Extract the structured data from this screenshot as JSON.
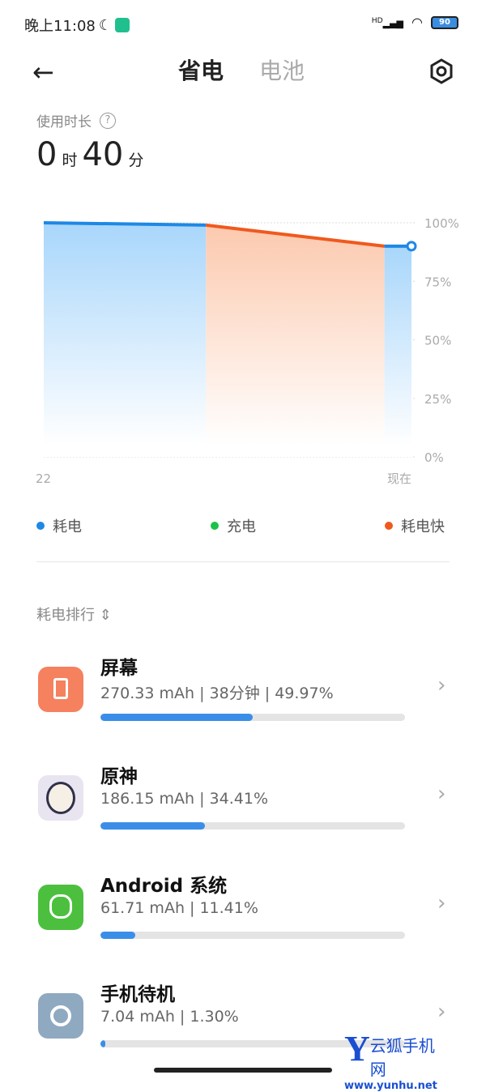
{
  "status_bar": {
    "time": "晚上11:08",
    "network": "HD",
    "battery": "90"
  },
  "header": {
    "tabs": [
      {
        "label": "省电",
        "active": true
      },
      {
        "label": "电池",
        "active": false
      }
    ]
  },
  "usage": {
    "label": "使用时长",
    "hours": "0",
    "hours_unit": "时",
    "minutes": "40",
    "minutes_unit": "分"
  },
  "chart_data": {
    "type": "area",
    "x_ticks": [
      "22",
      "现在"
    ],
    "x_range": [
      "22:00",
      "23:08"
    ],
    "y_ticks": [
      "100%",
      "75%",
      "50%",
      "25%",
      "0%"
    ],
    "ylim": [
      0,
      100
    ],
    "grid": true,
    "points": [
      {
        "time": "22:00",
        "value": 100
      },
      {
        "time": "22:30",
        "value": 99
      },
      {
        "time": "23:03",
        "value": 90
      },
      {
        "time": "23:08",
        "value": 90
      }
    ],
    "segments": [
      "耗电",
      "耗电快",
      "耗电"
    ],
    "legend": [
      {
        "label": "耗电",
        "color": "#1e88e5"
      },
      {
        "label": "充电",
        "color": "#1bc24a"
      },
      {
        "label": "耗电快",
        "color": "#f0591e"
      }
    ],
    "legend_position": "bottom"
  },
  "ranking": {
    "label": "耗电排行",
    "items": [
      {
        "name": "屏幕",
        "detail": "270.33 mAh | 38分钟 | 49.97%",
        "percent": 49.97,
        "icon": "screen-icon",
        "color": "#f5815f"
      },
      {
        "name": "原神",
        "detail": "186.15 mAh | 34.41%",
        "percent": 34.41,
        "icon": "genshin-app-icon",
        "color": "#e8e4f0"
      },
      {
        "name": "Android 系统",
        "detail": "61.71 mAh | 11.41%",
        "percent": 11.41,
        "icon": "android-icon",
        "color": "#4cc03e"
      },
      {
        "name": "手机待机",
        "detail": "7.04 mAh | 1.30%",
        "percent": 1.3,
        "icon": "power-icon",
        "color": "#8fa9c0"
      }
    ]
  },
  "watermark": {
    "brand": "云狐手机网",
    "url": "www.yunhu.net"
  }
}
